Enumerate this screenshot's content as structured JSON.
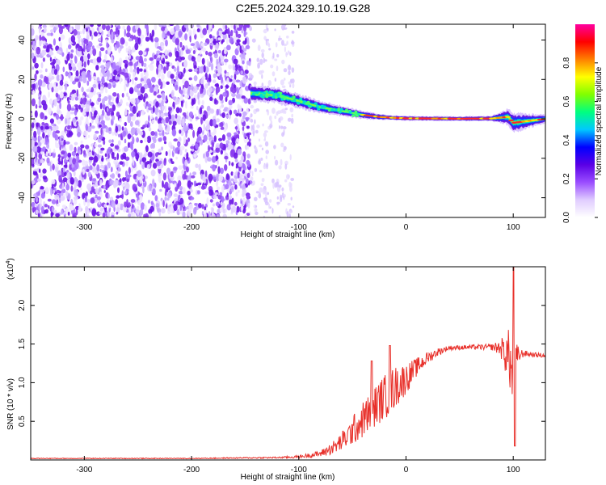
{
  "figure": {
    "title": "C2E5.2024.329.10.19.G28"
  },
  "chart_data": [
    {
      "type": "heatmap",
      "title": "C2E5.2024.329.10.19.G28",
      "xlabel": "Height of straight line (km)",
      "ylabel": "Frequency (Hz)",
      "xlim": [
        -350,
        130
      ],
      "ylim": [
        -50,
        48
      ],
      "xticks": [
        -300,
        -200,
        -100,
        0,
        100
      ],
      "yticks": [
        -40,
        -20,
        0,
        20,
        40
      ],
      "colorbar": {
        "label": "Normalized spectral amplitude",
        "range": [
          0,
          1
        ],
        "ticks": [
          "0.0",
          "0.2",
          "0.4",
          "0.6",
          "0.8"
        ],
        "colors": [
          "#ffffff",
          "#e0ccff",
          "#9a4dff",
          "#5a00e6",
          "#0000ff",
          "#00c8ff",
          "#00ff80",
          "#80ff00",
          "#ffff00",
          "#ff8000",
          "#ff0000",
          "#ff00a0"
        ]
      },
      "noise_region": {
        "x": [
          -350,
          -145
        ],
        "faint_until": -105
      },
      "signal_track": {
        "x": [
          -145,
          -120,
          -100,
          -80,
          -60,
          -40,
          -25,
          -10,
          0,
          20,
          50,
          80,
          95,
          100,
          130
        ],
        "frequency": [
          13,
          12,
          9,
          6,
          4,
          2,
          1,
          0.5,
          0.3,
          0.2,
          0.1,
          0.2,
          1,
          -2,
          0
        ],
        "spread": [
          4,
          4,
          3.5,
          3,
          2.5,
          2,
          1.5,
          1.2,
          1.2,
          1.2,
          1.2,
          1.4,
          4,
          5,
          2
        ]
      }
    },
    {
      "type": "line",
      "xlabel": "Height of straight line (km)",
      "ylabel": "SNR (10 * v/v)",
      "multiplier": "(x10",
      "multiplier_exp": "4",
      "multiplier_close": ")",
      "xlim": [
        -350,
        130
      ],
      "ylim": [
        0,
        2.5
      ],
      "xticks": [
        -300,
        -200,
        -100,
        0,
        100
      ],
      "yticks": [
        "0.5",
        "1.0",
        "1.5",
        "2.0"
      ],
      "color": "#e8302a",
      "envelope": {
        "x": [
          -350,
          -200,
          -120,
          -100,
          -80,
          -65,
          -55,
          -45,
          -35,
          -25,
          -15,
          -5,
          0,
          10,
          20,
          30,
          40,
          60,
          80,
          88,
          92,
          96,
          98,
          100,
          102,
          105,
          110,
          120,
          130
        ],
        "mean": [
          0.02,
          0.02,
          0.03,
          0.04,
          0.08,
          0.18,
          0.3,
          0.45,
          0.6,
          0.75,
          0.88,
          1.0,
          1.05,
          1.2,
          1.32,
          1.4,
          1.45,
          1.46,
          1.46,
          1.45,
          1.4,
          1.35,
          1.2,
          0.8,
          1.2,
          1.35,
          1.38,
          1.36,
          1.35
        ],
        "noise": [
          0.005,
          0.005,
          0.01,
          0.02,
          0.04,
          0.1,
          0.15,
          0.22,
          0.25,
          0.28,
          0.3,
          0.25,
          0.2,
          0.12,
          0.08,
          0.05,
          0.03,
          0.03,
          0.04,
          0.1,
          0.25,
          0.35,
          0.45,
          0.6,
          0.4,
          0.1,
          0.04,
          0.03,
          0.03
        ]
      },
      "peaks": [
        {
          "x": 100.5,
          "y": 2.5
        },
        {
          "x": 101.5,
          "y": 0.18
        },
        {
          "x": -15,
          "y": 1.48
        },
        {
          "x": -32,
          "y": 1.28
        }
      ]
    }
  ]
}
